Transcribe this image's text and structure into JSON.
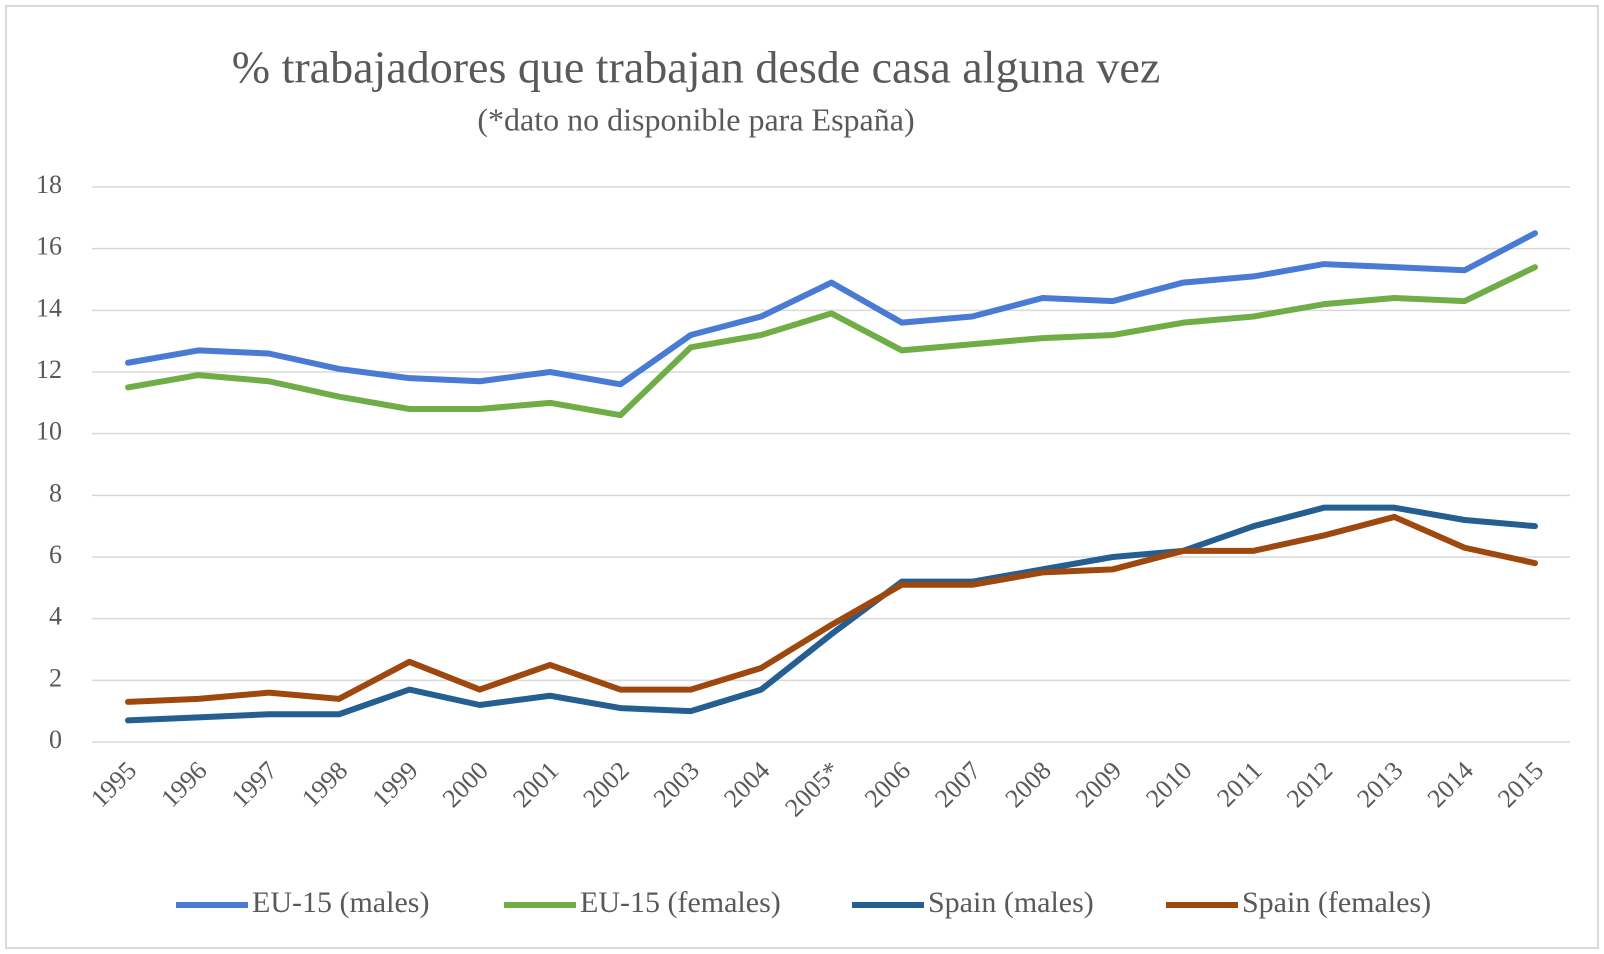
{
  "chart_data": {
    "type": "line",
    "title": "% trabajadores que trabajan desde casa alguna vez",
    "subtitle": "(*dato no disponible para España)",
    "categories": [
      "1995",
      "1996",
      "1997",
      "1998",
      "1999",
      "2000",
      "2001",
      "2002",
      "2003",
      "2004",
      "2005*",
      "2006",
      "2007",
      "2008",
      "2009",
      "2010",
      "2011",
      "2012",
      "2013",
      "2014",
      "2015"
    ],
    "series": [
      {
        "name": "EU-15 (males)",
        "color": "#4a7bd4",
        "values": [
          12.3,
          12.7,
          12.6,
          12.1,
          11.8,
          11.7,
          12.0,
          11.6,
          13.2,
          13.8,
          14.9,
          13.6,
          13.8,
          14.4,
          14.3,
          14.9,
          15.1,
          15.5,
          15.4,
          15.3,
          16.5
        ]
      },
      {
        "name": "EU-15 (females)",
        "color": "#70ad47",
        "values": [
          11.5,
          11.9,
          11.7,
          11.2,
          10.8,
          10.8,
          11.0,
          10.6,
          12.8,
          13.2,
          13.9,
          12.7,
          12.9,
          13.1,
          13.2,
          13.6,
          13.8,
          14.2,
          14.4,
          14.3,
          15.4
        ]
      },
      {
        "name": "Spain (males)",
        "color": "#255e91",
        "values": [
          0.7,
          0.8,
          0.9,
          0.9,
          1.7,
          1.2,
          1.5,
          1.1,
          1.0,
          1.7,
          3.5,
          5.2,
          5.2,
          5.6,
          6.0,
          6.2,
          7.0,
          7.6,
          7.6,
          7.2,
          7.0
        ]
      },
      {
        "name": "Spain (females)",
        "color": "#9e480e",
        "values": [
          1.3,
          1.4,
          1.6,
          1.4,
          2.6,
          1.7,
          2.5,
          1.7,
          1.7,
          2.4,
          3.8,
          5.1,
          5.1,
          5.5,
          5.6,
          6.2,
          6.2,
          6.7,
          7.3,
          6.3,
          5.8
        ]
      }
    ],
    "ylim": [
      0,
      18
    ],
    "yticks": [
      0,
      2,
      4,
      6,
      8,
      10,
      12,
      14,
      16,
      18
    ],
    "grid": true,
    "legend": "bottom"
  }
}
